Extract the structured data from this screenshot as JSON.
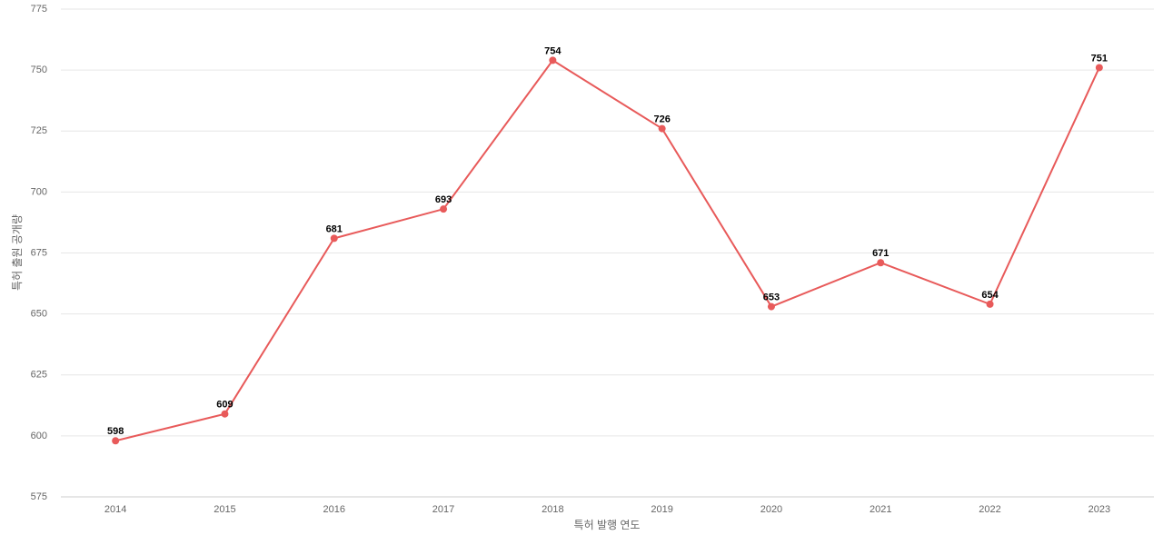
{
  "chart_data": {
    "type": "line",
    "categories": [
      "2014",
      "2015",
      "2016",
      "2017",
      "2018",
      "2019",
      "2020",
      "2021",
      "2022",
      "2023"
    ],
    "series": [
      {
        "color": "#e85a5a",
        "values": [
          598,
          609,
          681,
          693,
          754,
          726,
          653,
          671,
          654,
          751
        ]
      }
    ],
    "ylim": [
      575,
      775
    ],
    "yticks": [
      575,
      600,
      625,
      650,
      675,
      700,
      725,
      750,
      775
    ],
    "xlabel": "특허 발행 연도",
    "ylabel": "특허 출원 공개량",
    "grid": true
  }
}
